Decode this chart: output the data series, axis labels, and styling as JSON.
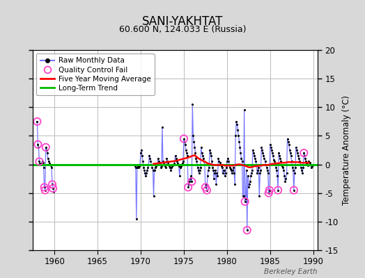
{
  "title": "SANI-YAKHTAT",
  "subtitle": "60.600 N, 124.033 E (Russia)",
  "ylabel": "Temperature Anomaly (°C)",
  "watermark": "Berkeley Earth",
  "xlim": [
    1957.5,
    1990.5
  ],
  "ylim": [
    -15,
    20
  ],
  "yticks": [
    -15,
    -10,
    -5,
    0,
    5,
    10,
    15,
    20
  ],
  "xticks": [
    1960,
    1965,
    1970,
    1975,
    1980,
    1985,
    1990
  ],
  "background_color": "#d8d8d8",
  "plot_bg_color": "#ffffff",
  "grid_color": "#bbbbbb",
  "raw_line_color": "#7777ff",
  "raw_dot_color": "#000000",
  "qc_fail_color": "#ff44cc",
  "moving_avg_color": "#ff0000",
  "trend_color": "#00bb00",
  "trend_value": 0.0,
  "raw_data": [
    [
      1958.0,
      7.5
    ],
    [
      1958.083,
      3.5
    ],
    [
      1958.167,
      3.0
    ],
    [
      1958.25,
      0.5
    ],
    [
      1958.333,
      0.2
    ],
    [
      1958.417,
      0.0
    ],
    [
      1958.5,
      0.2
    ],
    [
      1958.583,
      0.5
    ],
    [
      1958.667,
      0.3
    ],
    [
      1958.75,
      -0.5
    ],
    [
      1958.833,
      -4.0
    ],
    [
      1958.917,
      -4.5
    ],
    [
      1959.0,
      3.0
    ],
    [
      1959.083,
      2.5
    ],
    [
      1959.167,
      2.0
    ],
    [
      1959.25,
      1.0
    ],
    [
      1959.333,
      0.5
    ],
    [
      1959.417,
      0.2
    ],
    [
      1959.5,
      0.0
    ],
    [
      1959.583,
      -0.2
    ],
    [
      1959.667,
      -0.5
    ],
    [
      1959.75,
      -3.5
    ],
    [
      1959.833,
      -4.2
    ],
    [
      1959.917,
      -4.8
    ],
    [
      1969.333,
      -0.3
    ],
    [
      1969.417,
      -0.5
    ],
    [
      1969.5,
      -9.5
    ],
    [
      1969.583,
      -0.5
    ],
    [
      1969.667,
      -0.3
    ],
    [
      1969.75,
      -0.5
    ],
    [
      1969.833,
      -0.3
    ],
    [
      1969.917,
      0.0
    ],
    [
      1970.0,
      2.0
    ],
    [
      1970.083,
      2.5
    ],
    [
      1970.167,
      1.5
    ],
    [
      1970.25,
      0.5
    ],
    [
      1970.333,
      -0.5
    ],
    [
      1970.417,
      -1.0
    ],
    [
      1970.5,
      -1.5
    ],
    [
      1970.583,
      -2.0
    ],
    [
      1970.667,
      -1.5
    ],
    [
      1970.75,
      -1.0
    ],
    [
      1970.833,
      -0.5
    ],
    [
      1970.917,
      0.0
    ],
    [
      1971.0,
      1.5
    ],
    [
      1971.083,
      1.0
    ],
    [
      1971.167,
      0.5
    ],
    [
      1971.25,
      0.0
    ],
    [
      1971.333,
      -0.5
    ],
    [
      1971.417,
      -1.0
    ],
    [
      1971.5,
      -5.5
    ],
    [
      1971.583,
      -1.0
    ],
    [
      1971.667,
      -0.5
    ],
    [
      1971.75,
      -0.3
    ],
    [
      1971.833,
      0.0
    ],
    [
      1971.917,
      0.2
    ],
    [
      1972.0,
      1.0
    ],
    [
      1972.083,
      0.5
    ],
    [
      1972.167,
      0.3
    ],
    [
      1972.25,
      0.0
    ],
    [
      1972.333,
      -0.5
    ],
    [
      1972.417,
      -0.3
    ],
    [
      1972.5,
      6.5
    ],
    [
      1972.583,
      0.5
    ],
    [
      1972.667,
      0.3
    ],
    [
      1972.75,
      0.0
    ],
    [
      1972.833,
      -0.3
    ],
    [
      1972.917,
      -0.5
    ],
    [
      1973.0,
      1.0
    ],
    [
      1973.083,
      0.5
    ],
    [
      1973.167,
      0.3
    ],
    [
      1973.25,
      0.0
    ],
    [
      1973.333,
      -0.3
    ],
    [
      1973.417,
      -0.5
    ],
    [
      1973.5,
      -1.0
    ],
    [
      1973.583,
      -0.5
    ],
    [
      1973.667,
      -0.3
    ],
    [
      1973.75,
      -0.2
    ],
    [
      1973.833,
      0.0
    ],
    [
      1973.917,
      0.2
    ],
    [
      1974.0,
      1.5
    ],
    [
      1974.083,
      1.0
    ],
    [
      1974.167,
      0.5
    ],
    [
      1974.25,
      0.2
    ],
    [
      1974.333,
      0.0
    ],
    [
      1974.417,
      -0.3
    ],
    [
      1974.5,
      -2.0
    ],
    [
      1974.583,
      -0.5
    ],
    [
      1974.667,
      -0.3
    ],
    [
      1974.75,
      0.0
    ],
    [
      1974.833,
      0.2
    ],
    [
      1974.917,
      0.5
    ],
    [
      1975.0,
      4.5
    ],
    [
      1975.083,
      4.0
    ],
    [
      1975.167,
      3.5
    ],
    [
      1975.25,
      2.5
    ],
    [
      1975.333,
      2.0
    ],
    [
      1975.417,
      1.5
    ],
    [
      1975.5,
      -4.0
    ],
    [
      1975.583,
      -3.5
    ],
    [
      1975.667,
      -3.0
    ],
    [
      1975.75,
      -2.5
    ],
    [
      1975.833,
      -2.0
    ],
    [
      1975.917,
      -3.0
    ],
    [
      1976.0,
      10.5
    ],
    [
      1976.083,
      5.0
    ],
    [
      1976.167,
      4.0
    ],
    [
      1976.25,
      3.0
    ],
    [
      1976.333,
      2.0
    ],
    [
      1976.417,
      1.0
    ],
    [
      1976.5,
      0.5
    ],
    [
      1976.583,
      -0.5
    ],
    [
      1976.667,
      -1.0
    ],
    [
      1976.75,
      -1.5
    ],
    [
      1976.833,
      -1.0
    ],
    [
      1976.917,
      -0.5
    ],
    [
      1977.0,
      3.0
    ],
    [
      1977.083,
      2.0
    ],
    [
      1977.167,
      1.5
    ],
    [
      1977.25,
      1.0
    ],
    [
      1977.333,
      0.5
    ],
    [
      1977.417,
      0.0
    ],
    [
      1977.5,
      -4.0
    ],
    [
      1977.583,
      -3.5
    ],
    [
      1977.667,
      -4.5
    ],
    [
      1977.75,
      -2.0
    ],
    [
      1977.833,
      -1.0
    ],
    [
      1977.917,
      -0.5
    ],
    [
      1978.0,
      2.5
    ],
    [
      1978.083,
      2.0
    ],
    [
      1978.167,
      1.5
    ],
    [
      1978.25,
      0.5
    ],
    [
      1978.333,
      -0.5
    ],
    [
      1978.417,
      -1.0
    ],
    [
      1978.5,
      -2.5
    ],
    [
      1978.583,
      -1.5
    ],
    [
      1978.667,
      -1.0
    ],
    [
      1978.75,
      -3.5
    ],
    [
      1978.833,
      -1.5
    ],
    [
      1978.917,
      -2.0
    ],
    [
      1979.0,
      1.0
    ],
    [
      1979.083,
      0.5
    ],
    [
      1979.167,
      0.3
    ],
    [
      1979.25,
      0.0
    ],
    [
      1979.333,
      -0.3
    ],
    [
      1979.417,
      -0.5
    ],
    [
      1979.5,
      -1.5
    ],
    [
      1979.583,
      -1.0
    ],
    [
      1979.667,
      -1.0
    ],
    [
      1979.75,
      -2.0
    ],
    [
      1979.833,
      -1.5
    ],
    [
      1979.917,
      -0.5
    ],
    [
      1980.0,
      0.5
    ],
    [
      1980.083,
      1.0
    ],
    [
      1980.167,
      0.5
    ],
    [
      1980.25,
      0.0
    ],
    [
      1980.333,
      -0.5
    ],
    [
      1980.417,
      -0.8
    ],
    [
      1980.5,
      -1.0
    ],
    [
      1980.583,
      -1.5
    ],
    [
      1980.667,
      -1.0
    ],
    [
      1980.75,
      -0.5
    ],
    [
      1980.833,
      -1.5
    ],
    [
      1980.917,
      -3.5
    ],
    [
      1981.0,
      5.0
    ],
    [
      1981.083,
      7.5
    ],
    [
      1981.167,
      7.0
    ],
    [
      1981.25,
      6.0
    ],
    [
      1981.333,
      5.0
    ],
    [
      1981.417,
      4.0
    ],
    [
      1981.5,
      3.0
    ],
    [
      1981.583,
      2.0
    ],
    [
      1981.667,
      1.0
    ],
    [
      1981.75,
      0.5
    ],
    [
      1981.833,
      -5.5
    ],
    [
      1981.917,
      -5.5
    ],
    [
      1982.0,
      9.5
    ],
    [
      1982.083,
      -6.5
    ],
    [
      1982.167,
      -6.0
    ],
    [
      1982.25,
      -1.0
    ],
    [
      1982.333,
      -11.5
    ],
    [
      1982.417,
      -2.0
    ],
    [
      1982.5,
      -4.0
    ],
    [
      1982.583,
      -3.5
    ],
    [
      1982.667,
      -3.0
    ],
    [
      1982.75,
      -2.0
    ],
    [
      1982.833,
      -1.5
    ],
    [
      1982.917,
      -1.0
    ],
    [
      1983.0,
      2.5
    ],
    [
      1983.083,
      2.0
    ],
    [
      1983.167,
      1.5
    ],
    [
      1983.25,
      1.0
    ],
    [
      1983.333,
      0.5
    ],
    [
      1983.417,
      0.0
    ],
    [
      1983.5,
      -1.5
    ],
    [
      1983.583,
      -1.0
    ],
    [
      1983.667,
      -0.5
    ],
    [
      1983.75,
      -5.5
    ],
    [
      1983.833,
      -1.5
    ],
    [
      1983.917,
      -1.0
    ],
    [
      1984.0,
      3.0
    ],
    [
      1984.083,
      2.5
    ],
    [
      1984.167,
      2.0
    ],
    [
      1984.25,
      1.5
    ],
    [
      1984.333,
      1.0
    ],
    [
      1984.417,
      0.5
    ],
    [
      1984.5,
      0.0
    ],
    [
      1984.583,
      -0.5
    ],
    [
      1984.667,
      -1.0
    ],
    [
      1984.75,
      -1.5
    ],
    [
      1984.833,
      -5.0
    ],
    [
      1984.917,
      -4.5
    ],
    [
      1985.0,
      3.5
    ],
    [
      1985.083,
      3.0
    ],
    [
      1985.167,
      2.5
    ],
    [
      1985.25,
      2.0
    ],
    [
      1985.333,
      1.5
    ],
    [
      1985.417,
      0.8
    ],
    [
      1985.5,
      0.5
    ],
    [
      1985.583,
      0.0
    ],
    [
      1985.667,
      -0.5
    ],
    [
      1985.75,
      -1.0
    ],
    [
      1985.833,
      -2.0
    ],
    [
      1985.917,
      -4.5
    ],
    [
      1986.0,
      2.0
    ],
    [
      1986.083,
      1.5
    ],
    [
      1986.167,
      1.0
    ],
    [
      1986.25,
      0.5
    ],
    [
      1986.333,
      0.0
    ],
    [
      1986.417,
      -0.3
    ],
    [
      1986.5,
      -0.5
    ],
    [
      1986.583,
      -1.0
    ],
    [
      1986.667,
      -2.0
    ],
    [
      1986.75,
      -3.0
    ],
    [
      1986.833,
      -2.5
    ],
    [
      1986.917,
      -1.5
    ],
    [
      1987.0,
      4.5
    ],
    [
      1987.083,
      4.0
    ],
    [
      1987.167,
      3.5
    ],
    [
      1987.25,
      2.5
    ],
    [
      1987.333,
      2.0
    ],
    [
      1987.417,
      1.5
    ],
    [
      1987.5,
      0.5
    ],
    [
      1987.583,
      -0.5
    ],
    [
      1987.667,
      -1.0
    ],
    [
      1987.75,
      -4.5
    ],
    [
      1987.833,
      -1.5
    ],
    [
      1987.917,
      -0.5
    ],
    [
      1988.0,
      3.0
    ],
    [
      1988.083,
      2.5
    ],
    [
      1988.167,
      2.0
    ],
    [
      1988.25,
      1.5
    ],
    [
      1988.333,
      1.0
    ],
    [
      1988.417,
      0.5
    ],
    [
      1988.5,
      0.0
    ],
    [
      1988.583,
      -0.5
    ],
    [
      1988.667,
      -1.0
    ],
    [
      1988.75,
      -1.5
    ],
    [
      1988.833,
      -0.5
    ],
    [
      1988.917,
      2.0
    ],
    [
      1989.0,
      1.5
    ],
    [
      1989.083,
      1.0
    ],
    [
      1989.167,
      0.5
    ],
    [
      1989.25,
      0.2
    ],
    [
      1989.333,
      0.0
    ],
    [
      1989.417,
      -0.2
    ],
    [
      1989.5,
      0.5
    ],
    [
      1989.583,
      0.3
    ],
    [
      1989.667,
      0.0
    ],
    [
      1989.75,
      -0.5
    ],
    [
      1989.833,
      -0.3
    ],
    [
      1989.917,
      0.0
    ]
  ],
  "qc_fail_points": [
    [
      1958.0,
      7.5
    ],
    [
      1958.083,
      3.5
    ],
    [
      1958.25,
      0.5
    ],
    [
      1958.833,
      -4.0
    ],
    [
      1958.917,
      -4.5
    ],
    [
      1959.0,
      3.0
    ],
    [
      1959.75,
      -3.5
    ],
    [
      1959.833,
      -4.2
    ],
    [
      1975.0,
      4.5
    ],
    [
      1975.5,
      -4.0
    ],
    [
      1975.917,
      -3.0
    ],
    [
      1977.5,
      -4.0
    ],
    [
      1977.667,
      -4.5
    ],
    [
      1982.083,
      -6.5
    ],
    [
      1982.333,
      -11.5
    ],
    [
      1984.833,
      -5.0
    ],
    [
      1984.917,
      -4.5
    ],
    [
      1985.917,
      -4.5
    ],
    [
      1987.75,
      -4.5
    ],
    [
      1988.917,
      2.0
    ]
  ],
  "moving_avg": [
    [
      1971.5,
      0.1
    ],
    [
      1972.0,
      0.2
    ],
    [
      1972.5,
      0.3
    ],
    [
      1973.0,
      0.4
    ],
    [
      1973.5,
      0.5
    ],
    [
      1974.0,
      0.6
    ],
    [
      1974.5,
      0.8
    ],
    [
      1975.0,
      1.0
    ],
    [
      1975.5,
      1.2
    ],
    [
      1976.0,
      1.5
    ],
    [
      1976.25,
      1.6
    ],
    [
      1976.5,
      1.3
    ],
    [
      1976.75,
      1.0
    ],
    [
      1977.0,
      0.8
    ],
    [
      1977.25,
      0.6
    ],
    [
      1977.5,
      0.4
    ],
    [
      1977.75,
      0.2
    ],
    [
      1978.0,
      0.1
    ],
    [
      1978.25,
      0.0
    ],
    [
      1978.5,
      -0.1
    ],
    [
      1978.75,
      -0.1
    ],
    [
      1979.0,
      -0.1
    ],
    [
      1979.25,
      -0.1
    ],
    [
      1979.5,
      -0.1
    ],
    [
      1979.75,
      -0.2
    ],
    [
      1980.0,
      -0.2
    ],
    [
      1980.25,
      -0.2
    ],
    [
      1980.5,
      -0.2
    ],
    [
      1980.75,
      -0.2
    ],
    [
      1981.0,
      -0.1
    ],
    [
      1981.25,
      0.0
    ],
    [
      1981.5,
      0.0
    ],
    [
      1981.75,
      -0.1
    ],
    [
      1982.0,
      -0.2
    ],
    [
      1982.25,
      -0.3
    ],
    [
      1982.5,
      -0.5
    ],
    [
      1982.75,
      -0.5
    ],
    [
      1983.0,
      -0.4
    ],
    [
      1983.25,
      -0.3
    ],
    [
      1983.5,
      -0.3
    ],
    [
      1983.75,
      -0.2
    ],
    [
      1984.0,
      -0.2
    ],
    [
      1984.25,
      -0.1
    ],
    [
      1984.5,
      -0.1
    ],
    [
      1984.75,
      -0.1
    ],
    [
      1985.0,
      0.0
    ],
    [
      1985.25,
      0.1
    ],
    [
      1985.5,
      0.1
    ],
    [
      1985.75,
      0.2
    ],
    [
      1986.0,
      0.2
    ],
    [
      1986.25,
      0.3
    ],
    [
      1986.5,
      0.3
    ],
    [
      1986.75,
      0.3
    ],
    [
      1987.0,
      0.4
    ],
    [
      1987.25,
      0.4
    ],
    [
      1987.5,
      0.4
    ],
    [
      1987.75,
      0.4
    ],
    [
      1988.0,
      0.4
    ],
    [
      1988.25,
      0.4
    ],
    [
      1988.5,
      0.3
    ],
    [
      1988.75,
      0.3
    ],
    [
      1989.0,
      0.3
    ],
    [
      1989.25,
      0.3
    ],
    [
      1989.5,
      0.3
    ]
  ]
}
